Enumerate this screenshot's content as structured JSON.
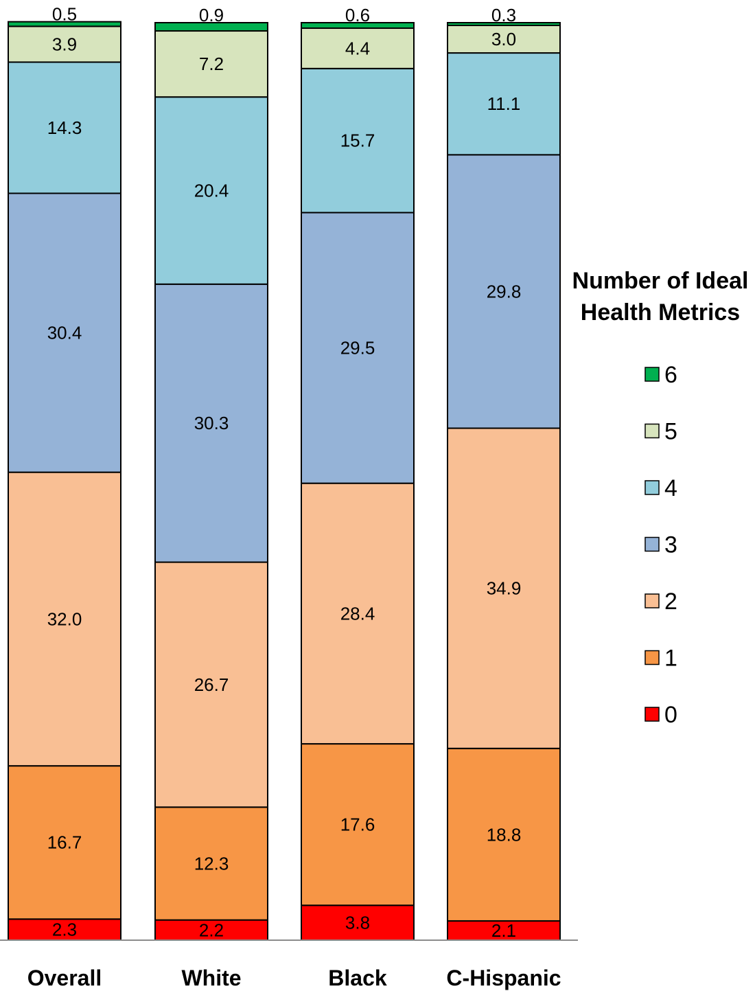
{
  "chart_data": {
    "type": "bar",
    "stacked": true,
    "orientation": "vertical",
    "categories": [
      "Overall",
      "White",
      "Black",
      "C-Hispanic"
    ],
    "series": [
      {
        "name": "0",
        "color": "#ff0000",
        "values": [
          2.3,
          2.2,
          3.8,
          2.1
        ]
      },
      {
        "name": "1",
        "color": "#f79646",
        "values": [
          16.7,
          12.3,
          17.6,
          18.8
        ]
      },
      {
        "name": "2",
        "color": "#f9bf94",
        "values": [
          32.0,
          26.7,
          28.4,
          34.9
        ]
      },
      {
        "name": "3",
        "color": "#95b3d7",
        "values": [
          30.4,
          30.3,
          29.5,
          29.8
        ]
      },
      {
        "name": "4",
        "color": "#92cddc",
        "values": [
          14.3,
          20.4,
          15.7,
          11.1
        ]
      },
      {
        "name": "5",
        "color": "#d7e4bd",
        "values": [
          3.9,
          7.2,
          4.4,
          3.0
        ]
      },
      {
        "name": "6",
        "color": "#00b050",
        "values": [
          0.5,
          0.9,
          0.6,
          0.3
        ]
      }
    ],
    "data_labels": [
      [
        "2.3",
        "16.7",
        "32.0",
        "30.4",
        "14.3",
        "3.9",
        "0.5"
      ],
      [
        "2.2",
        "12.3",
        "26.7",
        "30.3",
        "20.4",
        "7.2",
        "0.9"
      ],
      [
        "3.8",
        "17.6",
        "28.4",
        "29.5",
        "15.7",
        "4.4",
        "0.6"
      ],
      [
        "2.1",
        "18.8",
        "34.9",
        "29.8",
        "11.1",
        "3.0",
        "0.3"
      ]
    ],
    "legend": {
      "title_lines": [
        "Number of Ideal",
        "Health Metrics"
      ],
      "placement": "right",
      "order": [
        "6",
        "5",
        "4",
        "3",
        "2",
        "1",
        "0"
      ]
    },
    "ylim": [
      0,
      100
    ],
    "grid": false,
    "title": "",
    "xlabel": "",
    "ylabel": ""
  }
}
